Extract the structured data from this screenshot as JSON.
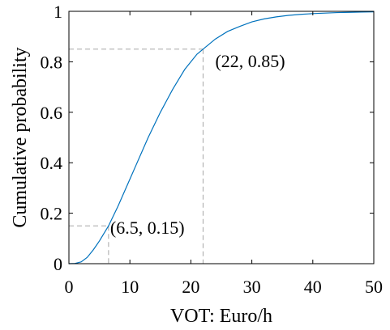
{
  "chart_data": {
    "type": "line",
    "title": "",
    "xlabel": "VOT: Euro/h",
    "ylabel": "Cumulative probability",
    "xlim": [
      0,
      50
    ],
    "ylim": [
      0,
      1
    ],
    "xticks": [
      0,
      10,
      20,
      30,
      40,
      50
    ],
    "yticks": [
      0,
      0.2,
      0.4,
      0.6,
      0.8,
      1
    ],
    "xtick_labels": [
      "0",
      "10",
      "20",
      "30",
      "40",
      "50"
    ],
    "ytick_labels": [
      "0",
      "0.2",
      "0.4",
      "0.6",
      "0.8",
      "1"
    ],
    "grid": false,
    "series": [
      {
        "color": "#0072BD",
        "x": [
          0,
          1,
          2,
          3,
          4,
          5,
          6,
          6.5,
          7,
          8,
          9,
          10,
          11,
          12,
          13,
          14,
          15,
          16,
          17,
          18,
          19,
          20,
          21,
          22,
          24,
          26,
          28,
          30,
          32,
          34,
          36,
          38,
          40,
          42,
          44,
          46,
          48,
          50
        ],
        "y": [
          0,
          0.001,
          0.007,
          0.025,
          0.055,
          0.09,
          0.13,
          0.15,
          0.175,
          0.225,
          0.28,
          0.335,
          0.39,
          0.445,
          0.5,
          0.55,
          0.6,
          0.645,
          0.69,
          0.73,
          0.77,
          0.8,
          0.83,
          0.85,
          0.89,
          0.92,
          0.94,
          0.958,
          0.97,
          0.978,
          0.984,
          0.988,
          0.991,
          0.993,
          0.995,
          0.996,
          0.997,
          0.998
        ]
      }
    ],
    "annotations": [
      {
        "label": "(6.5, 0.15)",
        "x": 6.5,
        "y": 0.15
      },
      {
        "label": "(22, 0.85)",
        "x": 22,
        "y": 0.85
      }
    ],
    "reference_line_color": "#a6a6a6"
  }
}
